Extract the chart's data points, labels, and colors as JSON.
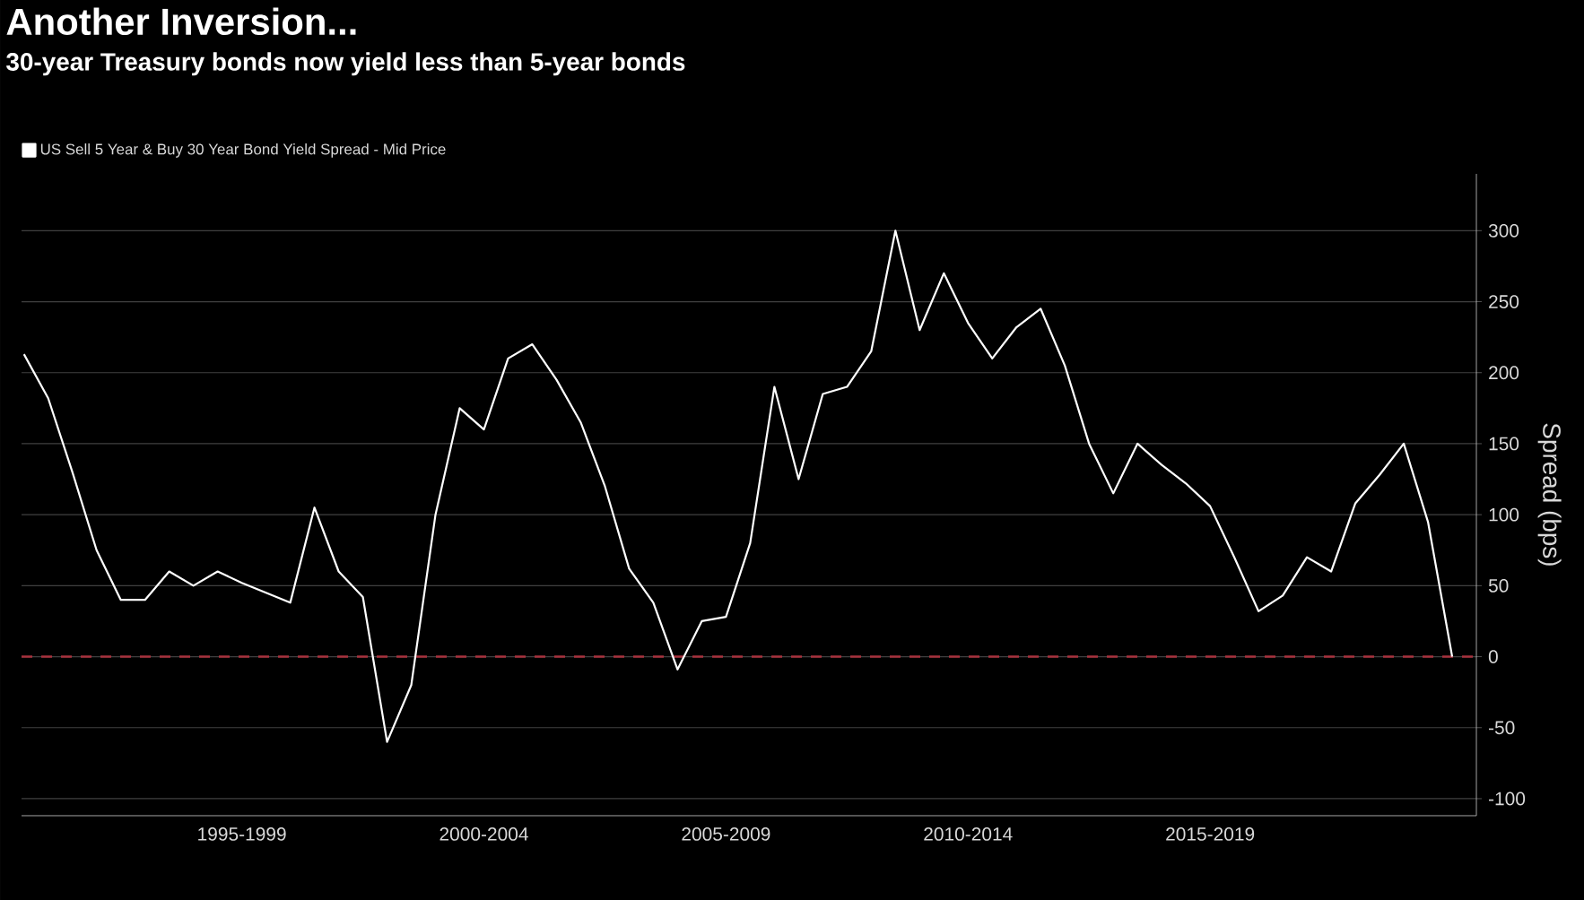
{
  "chart_data": {
    "type": "line",
    "title": "Another Inversion...",
    "subtitle": "30-year Treasury bonds now yield less than 5-year bonds",
    "ylabel": "Spread (bps)",
    "categories": [
      null,
      null,
      null,
      null,
      null,
      null,
      null,
      null,
      null,
      "1995-1999",
      null,
      null,
      null,
      null,
      null,
      null,
      null,
      null,
      null,
      "2000-2004",
      null,
      null,
      null,
      null,
      null,
      null,
      null,
      null,
      null,
      "2005-2009",
      null,
      null,
      null,
      null,
      null,
      null,
      null,
      null,
      null,
      "2010-2014",
      null,
      null,
      null,
      null,
      null,
      null,
      null,
      null,
      null,
      "2015-2019",
      null,
      null,
      null,
      null,
      null,
      null,
      null,
      null,
      null,
      null
    ],
    "series": [
      {
        "name": "US Sell 5 Year & Buy 30 Year Bond Yield Spread - Mid Price",
        "color": "#ffffff",
        "values": [
          213,
          182,
          130,
          75,
          40,
          40,
          60,
          50,
          60,
          52,
          45,
          38,
          105,
          60,
          42,
          -60,
          -20,
          100,
          175,
          160,
          210,
          220,
          195,
          165,
          120,
          62,
          38,
          -9,
          25,
          28,
          80,
          190,
          125,
          185,
          190,
          215,
          300,
          230,
          270,
          235,
          210,
          232,
          245,
          205,
          150,
          115,
          150,
          135,
          122,
          106,
          70,
          32,
          43,
          70,
          60,
          108,
          128,
          150,
          95,
          0
        ]
      }
    ],
    "ylim": [
      -112,
      340
    ],
    "yticks": [
      -100,
      -50,
      0,
      50,
      100,
      150,
      200,
      250,
      300
    ],
    "ref_lines": [
      {
        "axis": "y",
        "value": 0,
        "color": "#a8323e",
        "line_style": "dashed"
      }
    ],
    "grid": "y",
    "legend": "top left",
    "marker": "none",
    "line_style": "solid"
  }
}
